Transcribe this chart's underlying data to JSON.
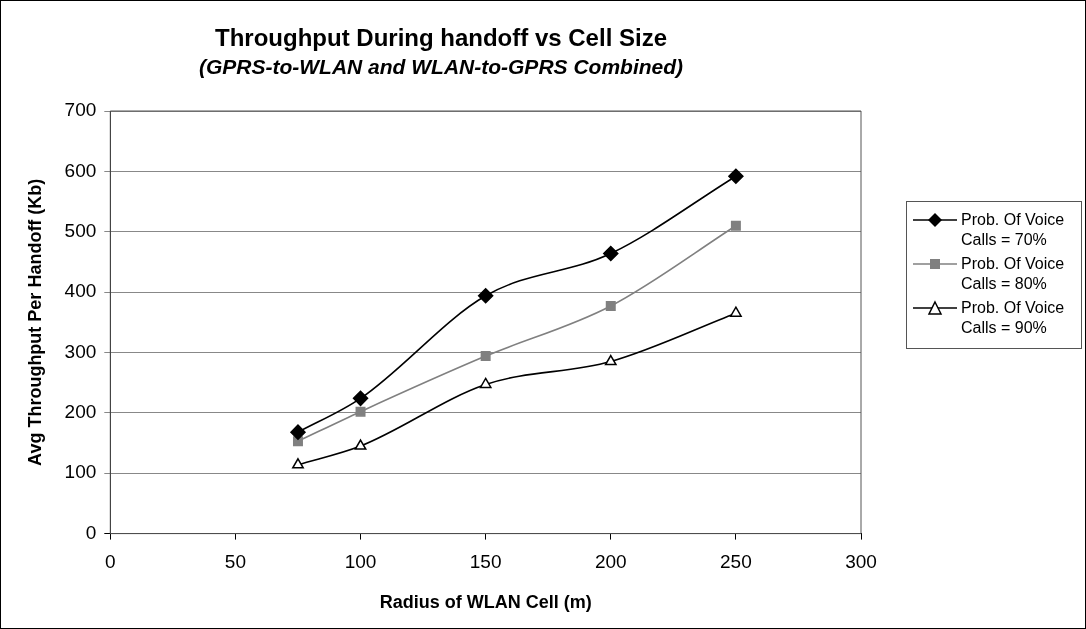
{
  "chart_data": {
    "type": "line",
    "title": "Throughput During handoff vs Cell Size",
    "subtitle": "(GPRS-to-WLAN and WLAN-to-GPRS Combined)",
    "xlabel": "Radius of WLAN Cell (m)",
    "ylabel": "Avg Throughput Per Handoff (Kb)",
    "x": [
      75,
      100,
      150,
      200,
      250
    ],
    "xlim": [
      0,
      300
    ],
    "xticks": [
      0,
      50,
      100,
      150,
      200,
      250,
      300
    ],
    "ylim": [
      0,
      700
    ],
    "yticks": [
      0,
      100,
      200,
      300,
      400,
      500,
      600,
      700
    ],
    "grid": "y",
    "legend": "right",
    "series": [
      {
        "name": "Prob. Of Voice Calls = 70%",
        "color": "#000000",
        "marker": "diamond",
        "values": [
          168,
          224,
          394,
          464,
          592
        ]
      },
      {
        "name": "Prob. Of Voice Calls = 80%",
        "color": "#808080",
        "marker": "square",
        "values": [
          153,
          202,
          294,
          377,
          510
        ]
      },
      {
        "name": "Prob. Of Voice Calls = 90%",
        "color": "#000000",
        "marker": "triangle",
        "values": [
          114,
          145,
          247,
          285,
          365
        ]
      }
    ]
  }
}
